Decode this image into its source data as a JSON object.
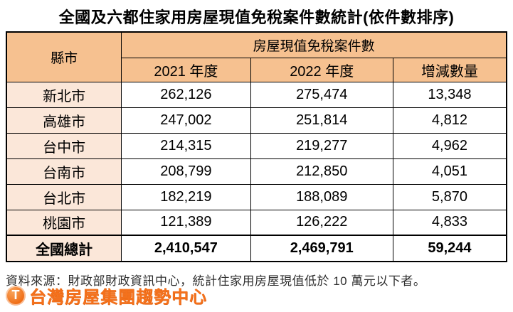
{
  "title": "全國及六都住家用房屋現值免稅案件數統計(依件數排序)",
  "table": {
    "corner_header": "縣市",
    "group_header": "房屋現值免稅案件數",
    "col_headers": [
      "2021 年度",
      "2022 年度",
      "增減數量"
    ],
    "rows": [
      {
        "city": "新北市",
        "y2021": "262,126",
        "y2022": "275,474",
        "diff": "13,348"
      },
      {
        "city": "高雄市",
        "y2021": "247,002",
        "y2022": "251,814",
        "diff": "4,812"
      },
      {
        "city": "台中市",
        "y2021": "214,315",
        "y2022": "219,277",
        "diff": "4,962"
      },
      {
        "city": "台南市",
        "y2021": "208,799",
        "y2022": "212,850",
        "diff": "4,051"
      },
      {
        "city": "台北市",
        "y2021": "182,219",
        "y2022": "188,089",
        "diff": "5,870"
      },
      {
        "city": "桃園市",
        "y2021": "121,389",
        "y2022": "126,222",
        "diff": "4,833"
      }
    ],
    "total": {
      "label": "全國總計",
      "y2021": "2,410,547",
      "y2022": "2,469,791",
      "diff": "59,244"
    }
  },
  "source_note": "資料來源：財政部財政資訊中心，統計住家用房屋現值低於 10 萬元以下者。",
  "logo": {
    "icon_letter": "T",
    "text": "台灣房屋集團趨勢中心"
  },
  "colors": {
    "header_bg": "#F6C190",
    "city_cell_bg": "#FBE7D9",
    "highlight_red": "#C2272D",
    "border": "#000000",
    "logo_orange": "#F4711C"
  }
}
